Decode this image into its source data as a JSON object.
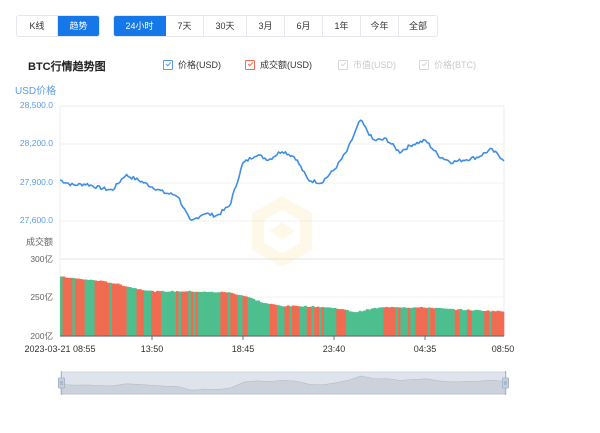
{
  "toolbar": {
    "type_buttons": [
      {
        "label": "K线",
        "active": false
      },
      {
        "label": "趋势",
        "active": true
      }
    ],
    "range_buttons": [
      {
        "label": "24小时",
        "active": true
      },
      {
        "label": "7天",
        "active": false
      },
      {
        "label": "30天",
        "active": false
      },
      {
        "label": "3月",
        "active": false
      },
      {
        "label": "6月",
        "active": false
      },
      {
        "label": "1年",
        "active": false
      },
      {
        "label": "今年",
        "active": false
      },
      {
        "label": "全部",
        "active": false
      }
    ]
  },
  "chart_header": {
    "title": "BTC行情趋势图",
    "legend": [
      {
        "label": "价格(USD)",
        "checked": true,
        "color": "#3e8ee6"
      },
      {
        "label": "成交额(USD)",
        "checked": true,
        "color": "#f06b52"
      },
      {
        "label": "市值(USD)",
        "checked": false,
        "color": "#d6d8db"
      },
      {
        "label": "价格(BTC)",
        "checked": false,
        "color": "#d6d8db"
      }
    ]
  },
  "axes": {
    "price_axis_name": "USD价格",
    "volume_axis_name": "成交额",
    "price_ticks": [
      "28,500.0",
      "28,200.0",
      "27,900.0",
      "27,600.0"
    ],
    "volume_ticks": [
      "300亿",
      "250亿",
      "200亿"
    ],
    "x_ticks": [
      "2023-03-21 08:55",
      "13:50",
      "18:45",
      "23:40",
      "04:35",
      "08:50"
    ]
  },
  "colors": {
    "accent": "#1677e8",
    "price_line": "#3e8ee6",
    "volume_up": "#4dbf8e",
    "volume_down": "#f06b52",
    "slider_fill": "#d5dbe4"
  },
  "chart_data": [
    {
      "type": "line",
      "title": "BTC行情趋势图 - 价格(USD)",
      "xlabel": "",
      "ylabel": "USD价格",
      "ylim": [
        27500,
        28500
      ],
      "x_tick_labels": [
        "2023-03-21 08:55",
        "13:50",
        "18:45",
        "23:40",
        "04:35",
        "08:50"
      ],
      "y_tick_labels": [
        "27,600.0",
        "27,900.0",
        "28,200.0",
        "28,500.0"
      ],
      "grid": true,
      "series": [
        {
          "name": "价格(USD)",
          "x": [
            "08:55",
            "09:45",
            "10:35",
            "11:25",
            "12:15",
            "13:05",
            "13:50",
            "14:40",
            "15:05",
            "15:30",
            "16:20",
            "17:10",
            "17:35",
            "18:00",
            "18:45",
            "19:35",
            "20:25",
            "21:15",
            "22:05",
            "22:30",
            "22:50",
            "23:40",
            "00:05",
            "00:30",
            "01:20",
            "01:45",
            "02:10",
            "03:00",
            "03:45",
            "04:35",
            "05:25",
            "06:15",
            "07:05",
            "07:55",
            "08:50"
          ],
          "values": [
            27920,
            27880,
            27890,
            27860,
            27840,
            27960,
            27920,
            27870,
            27820,
            27800,
            27590,
            27660,
            27640,
            27720,
            28050,
            28120,
            28080,
            28150,
            28100,
            27920,
            27900,
            28000,
            28150,
            28390,
            28230,
            28240,
            28140,
            28200,
            28230,
            28110,
            28060,
            28080,
            28100,
            28160,
            28080
          ]
        }
      ]
    },
    {
      "type": "bar",
      "title": "BTC行情趋势图 - 成交额(USD)",
      "xlabel": "",
      "ylabel": "成交额",
      "ylim": [
        200,
        300
      ],
      "y_unit": "亿",
      "y_tick_labels": [
        "200亿",
        "250亿",
        "300亿"
      ],
      "x_tick_labels": [
        "2023-03-21 08:55",
        "13:50",
        "18:45",
        "23:40",
        "04:35",
        "08:50"
      ],
      "series": [
        {
          "name": "成交额(USD)",
          "x": [
            "08:55",
            "10:00",
            "11:00",
            "12:00",
            "13:00",
            "13:50",
            "15:00",
            "16:00",
            "17:00",
            "18:00",
            "18:45",
            "20:00",
            "21:00",
            "22:00",
            "23:00",
            "23:40",
            "01:00",
            "02:00",
            "03:00",
            "04:00",
            "04:35",
            "06:00",
            "07:00",
            "08:00",
            "08:50"
          ],
          "values": [
            277,
            274,
            272,
            268,
            262,
            258,
            258,
            258,
            257,
            257,
            252,
            243,
            239,
            239,
            238,
            236,
            231,
            236,
            238,
            237,
            237,
            235,
            234,
            233,
            232
          ]
        }
      ]
    }
  ]
}
